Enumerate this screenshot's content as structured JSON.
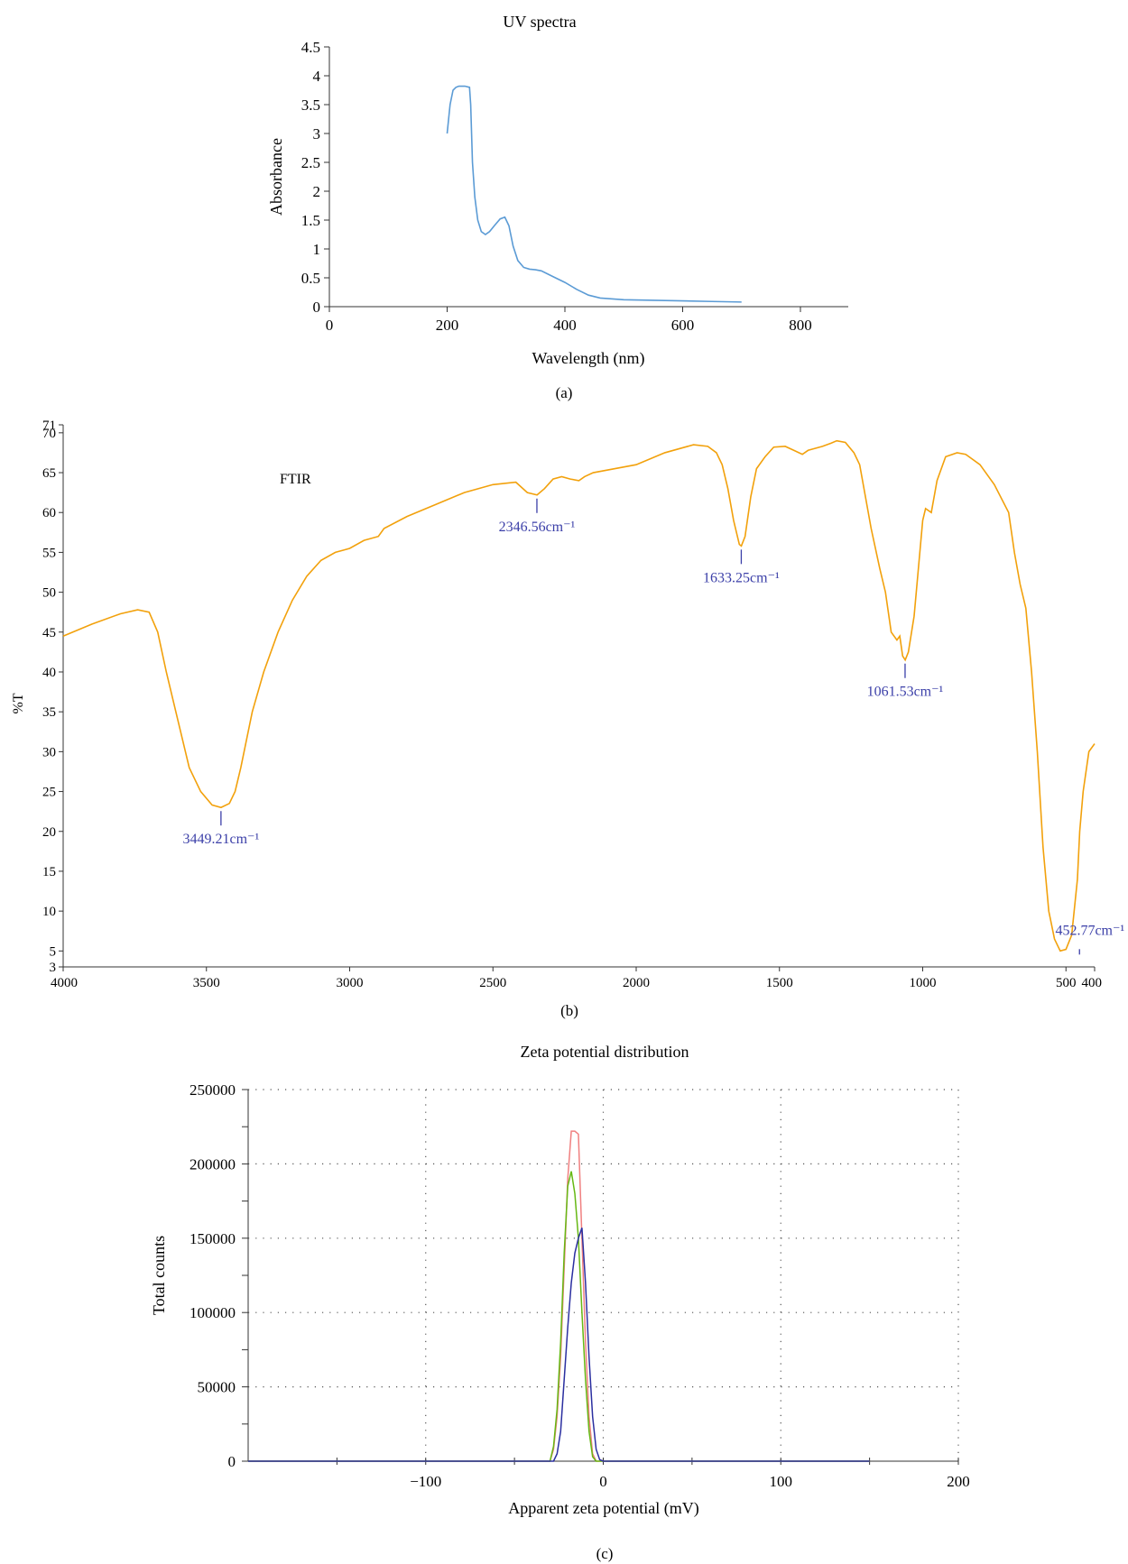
{
  "colors": {
    "uv_line": "#5b9bd5",
    "ftir_line": "#f2a10c",
    "ftir_annotation": "#3b3fa8",
    "zeta_red": "#f08080",
    "zeta_green": "#66b814",
    "zeta_blue": "#2b2fa0",
    "axis": "#333333"
  },
  "chart_data": [
    {
      "type": "line",
      "title": "UV spectra",
      "xlabel": "Wavelength (nm)",
      "ylabel": "Absorbance",
      "caption": "(a)",
      "xlim": [
        0,
        800
      ],
      "ylim": [
        0,
        4.5
      ],
      "xticks": [
        0,
        200,
        400,
        600,
        800
      ],
      "yticks": [
        0,
        0.5,
        1,
        1.5,
        2,
        2.5,
        3,
        3.5,
        4,
        4.5
      ],
      "grid": false,
      "series": [
        {
          "x": [
            200,
            205,
            210,
            215,
            220,
            230,
            238,
            240,
            243,
            247,
            252,
            258,
            265,
            272,
            280,
            290,
            298,
            305,
            312,
            320,
            330,
            340,
            350,
            360,
            380,
            400,
            420,
            440,
            460,
            500,
            550,
            600,
            650,
            700
          ],
          "y": [
            3.0,
            3.5,
            3.75,
            3.8,
            3.82,
            3.82,
            3.8,
            3.5,
            2.5,
            1.9,
            1.5,
            1.3,
            1.25,
            1.3,
            1.4,
            1.52,
            1.55,
            1.4,
            1.05,
            0.8,
            0.68,
            0.65,
            0.64,
            0.62,
            0.52,
            0.42,
            0.3,
            0.2,
            0.15,
            0.12,
            0.11,
            0.1,
            0.09,
            0.08
          ]
        }
      ]
    },
    {
      "type": "line",
      "title": "FTIR",
      "xlabel": "",
      "ylabel": "%T",
      "caption": "(b)",
      "xlim": [
        4000,
        400
      ],
      "ylim": [
        3,
        71
      ],
      "xticks": [
        4000,
        3500,
        3000,
        2500,
        2000,
        1500,
        1000,
        500,
        400
      ],
      "yticks": [
        3,
        5,
        10,
        15,
        20,
        25,
        30,
        35,
        40,
        45,
        50,
        55,
        60,
        65,
        70,
        71
      ],
      "grid": false,
      "series": [
        {
          "x": [
            4000,
            3900,
            3800,
            3740,
            3700,
            3670,
            3640,
            3600,
            3560,
            3520,
            3480,
            3449,
            3420,
            3400,
            3380,
            3340,
            3300,
            3250,
            3200,
            3150,
            3100,
            3050,
            3000,
            2950,
            2900,
            2880,
            2800,
            2700,
            2600,
            2500,
            2420,
            2380,
            2346,
            2320,
            2290,
            2260,
            2230,
            2200,
            2180,
            2150,
            2000,
            1900,
            1800,
            1750,
            1720,
            1700,
            1680,
            1660,
            1640,
            1633,
            1620,
            1600,
            1580,
            1550,
            1520,
            1480,
            1450,
            1420,
            1400,
            1380,
            1350,
            1320,
            1300,
            1270,
            1240,
            1220,
            1200,
            1180,
            1150,
            1130,
            1110,
            1090,
            1080,
            1070,
            1061,
            1050,
            1030,
            1000,
            990,
            970,
            950,
            920,
            880,
            850,
            800,
            750,
            700,
            680,
            660,
            640,
            620,
            600,
            580,
            560,
            540,
            520,
            500,
            480,
            460,
            452,
            440,
            420,
            400
          ],
          "y": [
            44.5,
            46,
            47.3,
            47.8,
            47.5,
            45,
            40,
            34,
            28,
            25,
            23.3,
            23,
            23.5,
            25,
            28,
            35,
            40,
            45,
            49,
            52,
            54,
            55,
            55.5,
            56.5,
            57,
            58,
            59.5,
            61,
            62.5,
            63.5,
            63.8,
            62.5,
            62.2,
            63,
            64.2,
            64.5,
            64.2,
            64,
            64.5,
            65,
            66,
            67.5,
            68.5,
            68.3,
            67.5,
            66,
            63,
            59,
            56,
            55.8,
            57,
            62,
            65.5,
            67,
            68.2,
            68.3,
            67.8,
            67.3,
            67.8,
            68,
            68.3,
            68.7,
            69,
            68.8,
            67.5,
            66,
            62,
            58,
            53,
            50,
            45,
            44,
            44.5,
            42,
            41.5,
            42.5,
            47,
            59,
            60.5,
            60,
            64,
            67,
            67.5,
            67.3,
            66,
            63.5,
            60,
            55,
            51,
            48,
            40,
            30,
            18,
            10,
            6.5,
            5,
            5.2,
            7,
            14,
            20,
            25,
            30,
            31
          ]
        }
      ],
      "annotations": [
        {
          "label": "3449.21cm⁻¹",
          "x": 3449.21,
          "y": 23
        },
        {
          "label": "2346.56cm⁻¹",
          "x": 2346.56,
          "y": 62.2
        },
        {
          "label": "1633.25cm⁻¹",
          "x": 1633.25,
          "y": 55.8
        },
        {
          "label": "1061.53cm⁻¹",
          "x": 1061.53,
          "y": 41.5
        },
        {
          "label": "452.77cm⁻¹",
          "x": 452.77,
          "y": 5
        }
      ]
    },
    {
      "type": "line",
      "title": "Zeta potential distribution",
      "xlabel": "Apparent zeta potential (mV)",
      "ylabel": "Total counts",
      "caption": "(c)",
      "xlim": [
        -200,
        200
      ],
      "ylim": [
        0,
        250000
      ],
      "xticks": [
        -100,
        0,
        100,
        200
      ],
      "yticks": [
        0,
        50000,
        100000,
        150000,
        200000,
        250000
      ],
      "grid": true,
      "series": [
        {
          "x": [
            -200,
            -30,
            -28,
            -26,
            -24,
            -22,
            -20,
            -18,
            -16,
            -14,
            -12,
            -10,
            -8,
            -6,
            -4,
            -2,
            0,
            150
          ],
          "y": [
            0,
            0,
            8000,
            30000,
            70000,
            130000,
            190000,
            222000,
            222000,
            220000,
            150000,
            80000,
            30000,
            5000,
            0,
            0,
            0,
            0
          ]
        },
        {
          "x": [
            -200,
            -30,
            -28,
            -26,
            -24,
            -22,
            -20,
            -18,
            -16,
            -14,
            -12,
            -10,
            -8,
            -6,
            -4,
            -2,
            0,
            150
          ],
          "y": [
            0,
            0,
            10000,
            35000,
            80000,
            140000,
            185000,
            195000,
            180000,
            150000,
            100000,
            55000,
            20000,
            3000,
            0,
            0,
            0,
            0
          ]
        },
        {
          "x": [
            -200,
            -28,
            -26,
            -24,
            -22,
            -20,
            -18,
            -16,
            -14,
            -12,
            -10,
            -8,
            -6,
            -4,
            -2,
            0,
            150
          ],
          "y": [
            0,
            0,
            5000,
            20000,
            55000,
            90000,
            120000,
            140000,
            150000,
            157000,
            120000,
            70000,
            30000,
            8000,
            1000,
            0,
            0
          ]
        }
      ]
    }
  ]
}
